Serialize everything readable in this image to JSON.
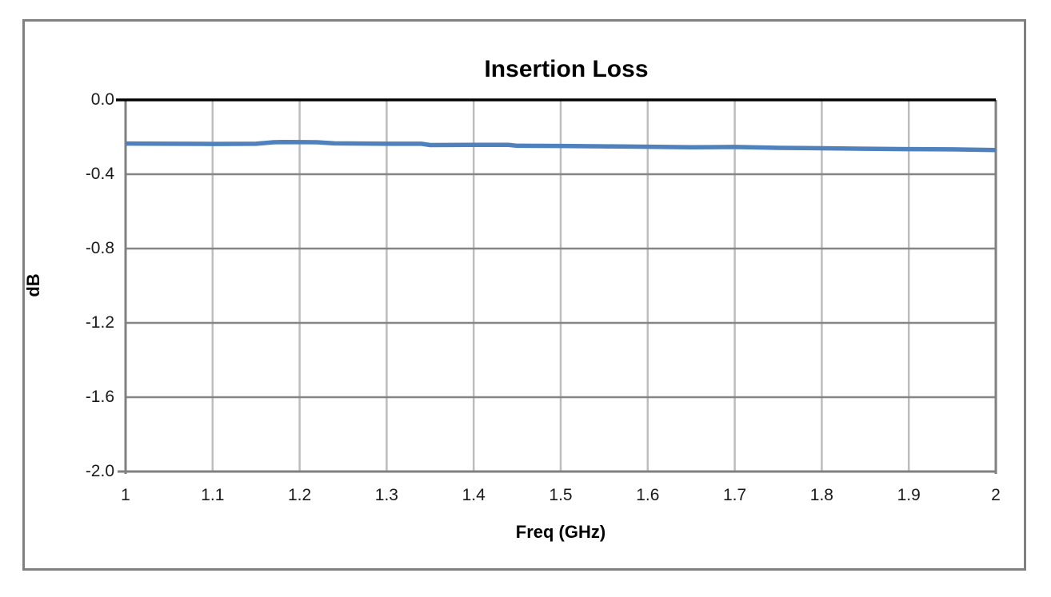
{
  "chart_data": {
    "type": "line",
    "title": "Insertion Loss",
    "xlabel": "Freq (GHz)",
    "ylabel": "dB",
    "xlim": [
      1,
      2
    ],
    "ylim": [
      -2.0,
      0.0
    ],
    "x_ticks": [
      1,
      1.1,
      1.2,
      1.3,
      1.4,
      1.5,
      1.6,
      1.7,
      1.8,
      1.9,
      2
    ],
    "x_tick_labels": [
      "1",
      "1.1",
      "1.2",
      "1.3",
      "1.4",
      "1.5",
      "1.6",
      "1.7",
      "1.8",
      "1.9",
      "2"
    ],
    "y_ticks": [
      0.0,
      -0.4,
      -0.8,
      -1.2,
      -1.6,
      -2.0
    ],
    "y_tick_labels": [
      "0.0",
      "-0.4",
      "-0.8",
      "-1.2",
      "-1.6",
      "-2.0"
    ],
    "grid": true,
    "legend": false,
    "series": [
      {
        "name": "Insertion Loss",
        "color": "#4F81BD",
        "x": [
          1.0,
          1.05,
          1.1,
          1.15,
          1.17,
          1.18,
          1.22,
          1.24,
          1.3,
          1.34,
          1.35,
          1.4,
          1.44,
          1.45,
          1.5,
          1.55,
          1.6,
          1.65,
          1.7,
          1.75,
          1.8,
          1.85,
          1.9,
          1.95,
          2.0
        ],
        "y": [
          -0.235,
          -0.236,
          -0.237,
          -0.236,
          -0.228,
          -0.227,
          -0.228,
          -0.234,
          -0.236,
          -0.236,
          -0.243,
          -0.242,
          -0.242,
          -0.247,
          -0.248,
          -0.25,
          -0.252,
          -0.255,
          -0.253,
          -0.258,
          -0.26,
          -0.263,
          -0.265,
          -0.266,
          -0.27
        ]
      }
    ],
    "colors": {
      "line": "#4F81BD",
      "h_gridline": "#858585",
      "v_gridline": "#BDBDBD",
      "axis": "#808080",
      "zero_line": "#000000",
      "outer_border": "#808080"
    }
  }
}
